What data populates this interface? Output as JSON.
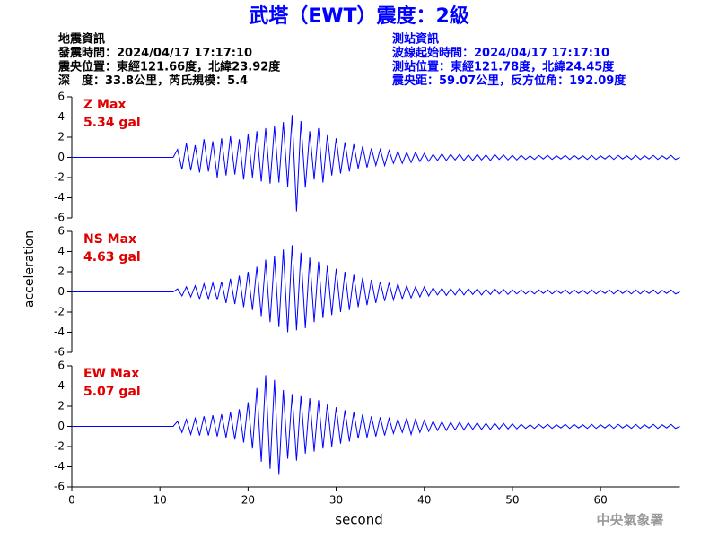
{
  "title": "武塔（EWT）震度：2級",
  "header": {
    "left": [
      "地震資訊",
      "發震時間：2024/04/17 17:17:10",
      "震央位置：東經121.66度，北緯23.92度",
      "深　度：33.8公里，芮氏規模：5.4"
    ],
    "right": [
      "測站資訊",
      "波線起始時間：2024/04/17 17:17:10",
      "測站位置：東經121.78度，北緯24.45度",
      "震央距：59.07公里，反方位角：192.09度"
    ]
  },
  "y_label": "acceleration",
  "x_label": "second",
  "footer": "中央氣象署",
  "chart_data": [
    {
      "type": "line",
      "name": "Z Max",
      "max_label": "5.34 gal",
      "xlim": [
        0,
        69
      ],
      "ylim": [
        -6,
        6
      ],
      "yticks": [
        -6,
        -4,
        -2,
        0,
        2,
        4,
        6
      ],
      "x": [
        0,
        11.5,
        12,
        12.5,
        13,
        13.5,
        14,
        14.5,
        15,
        15.5,
        16,
        16.5,
        17,
        17.5,
        18,
        18.5,
        19,
        19.5,
        20,
        20.5,
        21,
        21.5,
        22,
        22.5,
        23,
        23.5,
        24,
        24.5,
        25,
        25.5,
        26,
        26.5,
        27,
        27.5,
        28,
        28.5,
        29,
        29.5,
        30,
        30.5,
        31,
        31.5,
        32,
        32.5,
        33,
        33.5,
        34,
        34.5,
        35,
        35.5,
        36,
        36.5,
        37,
        37.5,
        38,
        38.5,
        39,
        39.5,
        40,
        40.5,
        41,
        41.5,
        42,
        42.5,
        43,
        43.5,
        44,
        44.5,
        45,
        45.5,
        46,
        46.5,
        47,
        47.5,
        48,
        48.5,
        49,
        49.5,
        50,
        50.5,
        51,
        51.5,
        52,
        52.5,
        53,
        53.5,
        54,
        54.5,
        55,
        55.5,
        56,
        56.5,
        57,
        57.5,
        58,
        58.5,
        59,
        59.5,
        60,
        60.5,
        61,
        61.5,
        62,
        62.5,
        63,
        63.5,
        64,
        64.5,
        65,
        65.5,
        66,
        66.5,
        67,
        67.5,
        68,
        68.5,
        69
      ],
      "series": [
        {
          "color": "#0000ff",
          "values": [
            0,
            0,
            0.8,
            -1.2,
            1.4,
            -1.3,
            1.2,
            -1.5,
            1.8,
            -1.4,
            1.6,
            -2.0,
            1.9,
            -1.8,
            2.1,
            -1.7,
            1.8,
            -2.2,
            2.3,
            -2.0,
            2.6,
            -2.4,
            2.9,
            -2.6,
            3.1,
            -2.5,
            3.5,
            -2.9,
            4.2,
            -5.34,
            3.6,
            -3.0,
            2.6,
            -2.2,
            2.9,
            -2.5,
            2.2,
            -1.8,
            1.9,
            -1.6,
            1.5,
            -1.4,
            1.3,
            -1.1,
            1.1,
            -1.0,
            0.9,
            -0.8,
            0.8,
            -0.8,
            0.7,
            -0.6,
            0.6,
            -0.6,
            0.5,
            -0.5,
            0.5,
            -0.4,
            0.4,
            -0.4,
            0.3,
            -0.3,
            0.35,
            -0.3,
            0.3,
            -0.25,
            0.3,
            -0.3,
            0.25,
            -0.3,
            0.3,
            -0.25,
            0.25,
            -0.3,
            0.3,
            -0.2,
            0.25,
            -0.25,
            0.2,
            -0.25,
            0.2,
            -0.2,
            0.15,
            -0.2,
            0.2,
            -0.15,
            0.2,
            -0.2,
            0.15,
            -0.15,
            0.2,
            -0.2,
            0.2,
            -0.15,
            0.15,
            -0.2,
            0.2,
            -0.2,
            0.15,
            -0.15,
            0.2,
            -0.2,
            0.2,
            -0.15,
            0.15,
            -0.2,
            0.2,
            -0.2,
            0.15,
            -0.15,
            0.2,
            -0.2,
            0.15,
            -0.15,
            0.2,
            -0.2,
            0
          ]
        }
      ]
    },
    {
      "type": "line",
      "name": "NS Max",
      "max_label": "4.63 gal",
      "xlim": [
        0,
        69
      ],
      "ylim": [
        -6,
        6
      ],
      "yticks": [
        -6,
        -4,
        -2,
        0,
        2,
        4,
        6
      ],
      "x": [
        0,
        11.5,
        12,
        12.5,
        13,
        13.5,
        14,
        14.5,
        15,
        15.5,
        16,
        16.5,
        17,
        17.5,
        18,
        18.5,
        19,
        19.5,
        20,
        20.5,
        21,
        21.5,
        22,
        22.5,
        23,
        23.5,
        24,
        24.5,
        25,
        25.5,
        26,
        26.5,
        27,
        27.5,
        28,
        28.5,
        29,
        29.5,
        30,
        30.5,
        31,
        31.5,
        32,
        32.5,
        33,
        33.5,
        34,
        34.5,
        35,
        35.5,
        36,
        36.5,
        37,
        37.5,
        38,
        38.5,
        39,
        39.5,
        40,
        40.5,
        41,
        41.5,
        42,
        42.5,
        43,
        43.5,
        44,
        44.5,
        45,
        45.5,
        46,
        46.5,
        47,
        47.5,
        48,
        48.5,
        49,
        49.5,
        50,
        50.5,
        51,
        51.5,
        52,
        52.5,
        53,
        53.5,
        54,
        54.5,
        55,
        55.5,
        56,
        56.5,
        57,
        57.5,
        58,
        58.5,
        59,
        59.5,
        60,
        60.5,
        61,
        61.5,
        62,
        62.5,
        63,
        63.5,
        64,
        64.5,
        65,
        65.5,
        66,
        66.5,
        67,
        67.5,
        68,
        68.5,
        69
      ],
      "series": [
        {
          "color": "#0000ff",
          "values": [
            0,
            0,
            0.3,
            -0.4,
            0.5,
            -0.5,
            0.6,
            -0.7,
            0.8,
            -0.7,
            0.9,
            -0.8,
            1.0,
            -1.1,
            1.3,
            -1.2,
            1.6,
            -1.5,
            2.0,
            -1.8,
            2.5,
            -2.4,
            3.2,
            -3.0,
            3.6,
            -3.5,
            4.2,
            -4.0,
            4.63,
            -3.8,
            3.9,
            -3.6,
            3.4,
            -3.0,
            3.0,
            -2.6,
            2.6,
            -2.3,
            2.3,
            -2.0,
            2.0,
            -1.8,
            1.7,
            -1.5,
            1.4,
            -1.3,
            1.2,
            -1.1,
            1.0,
            -0.9,
            0.9,
            -0.8,
            0.8,
            -0.7,
            0.6,
            -0.6,
            0.5,
            -0.5,
            0.5,
            -0.4,
            0.4,
            -0.3,
            0.35,
            -0.35,
            0.3,
            -0.3,
            0.35,
            -0.3,
            0.3,
            -0.25,
            0.3,
            -0.3,
            0.25,
            -0.25,
            0.3,
            -0.2,
            0.25,
            -0.25,
            0.2,
            -0.2,
            0.2,
            -0.2,
            0.15,
            -0.2,
            0.2,
            -0.15,
            0.2,
            -0.2,
            0.15,
            -0.15,
            0.2,
            -0.2,
            0.2,
            -0.15,
            0.15,
            -0.2,
            0.2,
            -0.2,
            0.15,
            -0.15,
            0.2,
            -0.2,
            0.2,
            -0.15,
            0.15,
            -0.2,
            0.2,
            -0.2,
            0.15,
            -0.15,
            0.2,
            -0.2,
            0.15,
            -0.15,
            0.2,
            -0.2,
            0
          ]
        }
      ]
    },
    {
      "type": "line",
      "name": "EW Max",
      "max_label": "5.07 gal",
      "xlim": [
        0,
        69
      ],
      "ylim": [
        -6,
        6
      ],
      "yticks": [
        -6,
        -4,
        -2,
        0,
        2,
        4,
        6
      ],
      "xticks": [
        0,
        10,
        20,
        30,
        40,
        50,
        60
      ],
      "x": [
        0,
        11.5,
        12,
        12.5,
        13,
        13.5,
        14,
        14.5,
        15,
        15.5,
        16,
        16.5,
        17,
        17.5,
        18,
        18.5,
        19,
        19.5,
        20,
        20.5,
        21,
        21.5,
        22,
        22.5,
        23,
        23.5,
        24,
        24.5,
        25,
        25.5,
        26,
        26.5,
        27,
        27.5,
        28,
        28.5,
        29,
        29.5,
        30,
        30.5,
        31,
        31.5,
        32,
        32.5,
        33,
        33.5,
        34,
        34.5,
        35,
        35.5,
        36,
        36.5,
        37,
        37.5,
        38,
        38.5,
        39,
        39.5,
        40,
        40.5,
        41,
        41.5,
        42,
        42.5,
        43,
        43.5,
        44,
        44.5,
        45,
        45.5,
        46,
        46.5,
        47,
        47.5,
        48,
        48.5,
        49,
        49.5,
        50,
        50.5,
        51,
        51.5,
        52,
        52.5,
        53,
        53.5,
        54,
        54.5,
        55,
        55.5,
        56,
        56.5,
        57,
        57.5,
        58,
        58.5,
        59,
        59.5,
        60,
        60.5,
        61,
        61.5,
        62,
        62.5,
        63,
        63.5,
        64,
        64.5,
        65,
        65.5,
        66,
        66.5,
        67,
        67.5,
        68,
        68.5,
        69
      ],
      "series": [
        {
          "color": "#0000ff",
          "values": [
            0,
            0,
            0.5,
            -0.6,
            0.7,
            -0.8,
            0.8,
            -0.9,
            1.0,
            -0.9,
            1.1,
            -1.0,
            1.2,
            -1.1,
            1.4,
            -1.3,
            1.7,
            -1.6,
            2.4,
            -2.2,
            3.8,
            -3.5,
            5.07,
            -4.2,
            4.6,
            -4.8,
            3.6,
            -3.2,
            3.2,
            -3.4,
            3.0,
            -2.7,
            2.8,
            -2.5,
            2.6,
            -2.2,
            2.2,
            -2.0,
            1.9,
            -1.7,
            1.6,
            -1.5,
            1.4,
            -1.2,
            1.2,
            -1.1,
            1.0,
            -1.0,
            0.9,
            -0.9,
            0.8,
            -0.7,
            0.7,
            -0.6,
            0.8,
            -0.8,
            0.7,
            -0.6,
            0.6,
            -0.5,
            0.5,
            -0.4,
            0.45,
            -0.4,
            0.4,
            -0.35,
            0.4,
            -0.35,
            0.35,
            -0.3,
            0.35,
            -0.3,
            0.3,
            -0.3,
            0.3,
            -0.25,
            0.3,
            -0.25,
            0.25,
            -0.25,
            0.2,
            -0.2,
            0.15,
            -0.2,
            0.2,
            -0.15,
            0.2,
            -0.2,
            0.15,
            -0.15,
            0.2,
            -0.2,
            0.2,
            -0.15,
            0.15,
            -0.2,
            0.2,
            -0.2,
            0.15,
            -0.15,
            0.2,
            -0.2,
            0.2,
            -0.15,
            0.15,
            -0.2,
            0.2,
            -0.2,
            0.15,
            -0.15,
            0.2,
            -0.2,
            0.15,
            -0.15,
            0.2,
            -0.2,
            0
          ]
        }
      ]
    }
  ]
}
